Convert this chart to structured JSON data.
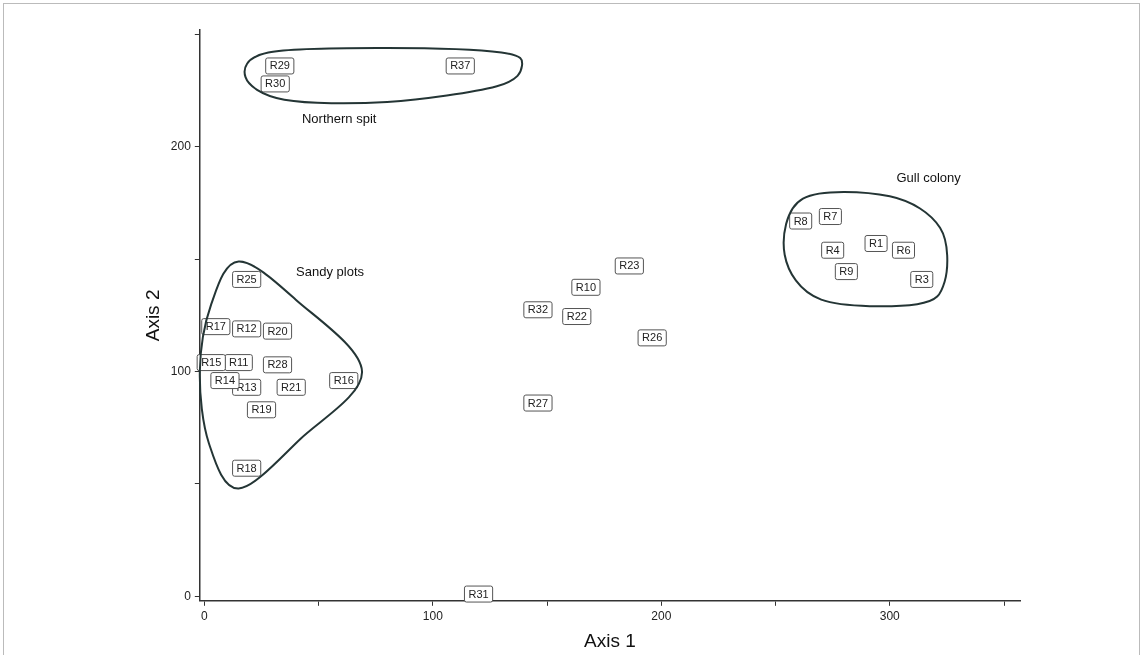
{
  "chart_data": {
    "type": "scatter",
    "xlabel": "Axis 1",
    "ylabel": "Axis 2",
    "xlim": [
      -2,
      357
    ],
    "ylim": [
      -2,
      252
    ],
    "xticks": [
      0,
      {
        "value": 50,
        "label": null
      },
      100,
      {
        "value": 150,
        "label": null
      },
      200,
      {
        "value": 250,
        "label": null
      },
      300,
      {
        "value": 350,
        "label": null
      }
    ],
    "yticks": [
      0,
      {
        "value": 50,
        "label": null
      },
      100,
      {
        "value": 150,
        "label": null
      },
      200,
      {
        "value": 250,
        "label": null
      }
    ],
    "grid": false,
    "legend": false,
    "marker": "square",
    "color": "#555555",
    "x": [
      294,
      314,
      275,
      306,
      274,
      261,
      281,
      167,
      15,
      18.5,
      18.5,
      9,
      3,
      61,
      5,
      18.5,
      25,
      32,
      38,
      163,
      186,
      18.5,
      196,
      146,
      32,
      33,
      31,
      120,
      146,
      112
    ],
    "values": [
      157,
      141,
      154,
      154,
      169,
      167,
      144.5,
      137.5,
      104,
      119,
      93,
      96,
      104,
      96,
      120,
      57,
      83,
      118,
      93,
      124.5,
      147,
      141,
      115,
      86,
      103,
      236,
      228,
      1,
      127.5,
      236
    ],
    "annotations": [
      {
        "text": "R1",
        "x": 294,
        "y": 157
      },
      {
        "text": "R3",
        "x": 314,
        "y": 141
      },
      {
        "text": "R4",
        "x": 275,
        "y": 154
      },
      {
        "text": "R6",
        "x": 306,
        "y": 154
      },
      {
        "text": "R7",
        "x": 274,
        "y": 169
      },
      {
        "text": "R8",
        "x": 261,
        "y": 167
      },
      {
        "text": "R9",
        "x": 281,
        "y": 144.5
      },
      {
        "text": "R10",
        "x": 167,
        "y": 137.5
      },
      {
        "text": "R11",
        "x": 15,
        "y": 104
      },
      {
        "text": "R12",
        "x": 18.5,
        "y": 119
      },
      {
        "text": "R13",
        "x": 18.5,
        "y": 93
      },
      {
        "text": "R14",
        "x": 9,
        "y": 96
      },
      {
        "text": "R15",
        "x": 3,
        "y": 104
      },
      {
        "text": "R16",
        "x": 61,
        "y": 96
      },
      {
        "text": "R17",
        "x": 5,
        "y": 120
      },
      {
        "text": "R18",
        "x": 18.5,
        "y": 57
      },
      {
        "text": "R19",
        "x": 25,
        "y": 83
      },
      {
        "text": "R20",
        "x": 32,
        "y": 118
      },
      {
        "text": "R21",
        "x": 38,
        "y": 93
      },
      {
        "text": "R22",
        "x": 163,
        "y": 124.5
      },
      {
        "text": "R23",
        "x": 186,
        "y": 147
      },
      {
        "text": "R25",
        "x": 18.5,
        "y": 141
      },
      {
        "text": "R26",
        "x": 196,
        "y": 115
      },
      {
        "text": "R27",
        "x": 146,
        "y": 86
      },
      {
        "text": "R28",
        "x": 32,
        "y": 103
      },
      {
        "text": "R29",
        "x": 33,
        "y": 236
      },
      {
        "text": "R30",
        "x": 31,
        "y": 228
      },
      {
        "text": "R31",
        "x": 120,
        "y": 1
      },
      {
        "text": "R32",
        "x": 146,
        "y": 127.5
      },
      {
        "text": "R37",
        "x": 112,
        "y": 236
      },
      "Northern spit",
      "Sandy plots",
      "Gull colony"
    ]
  }
}
